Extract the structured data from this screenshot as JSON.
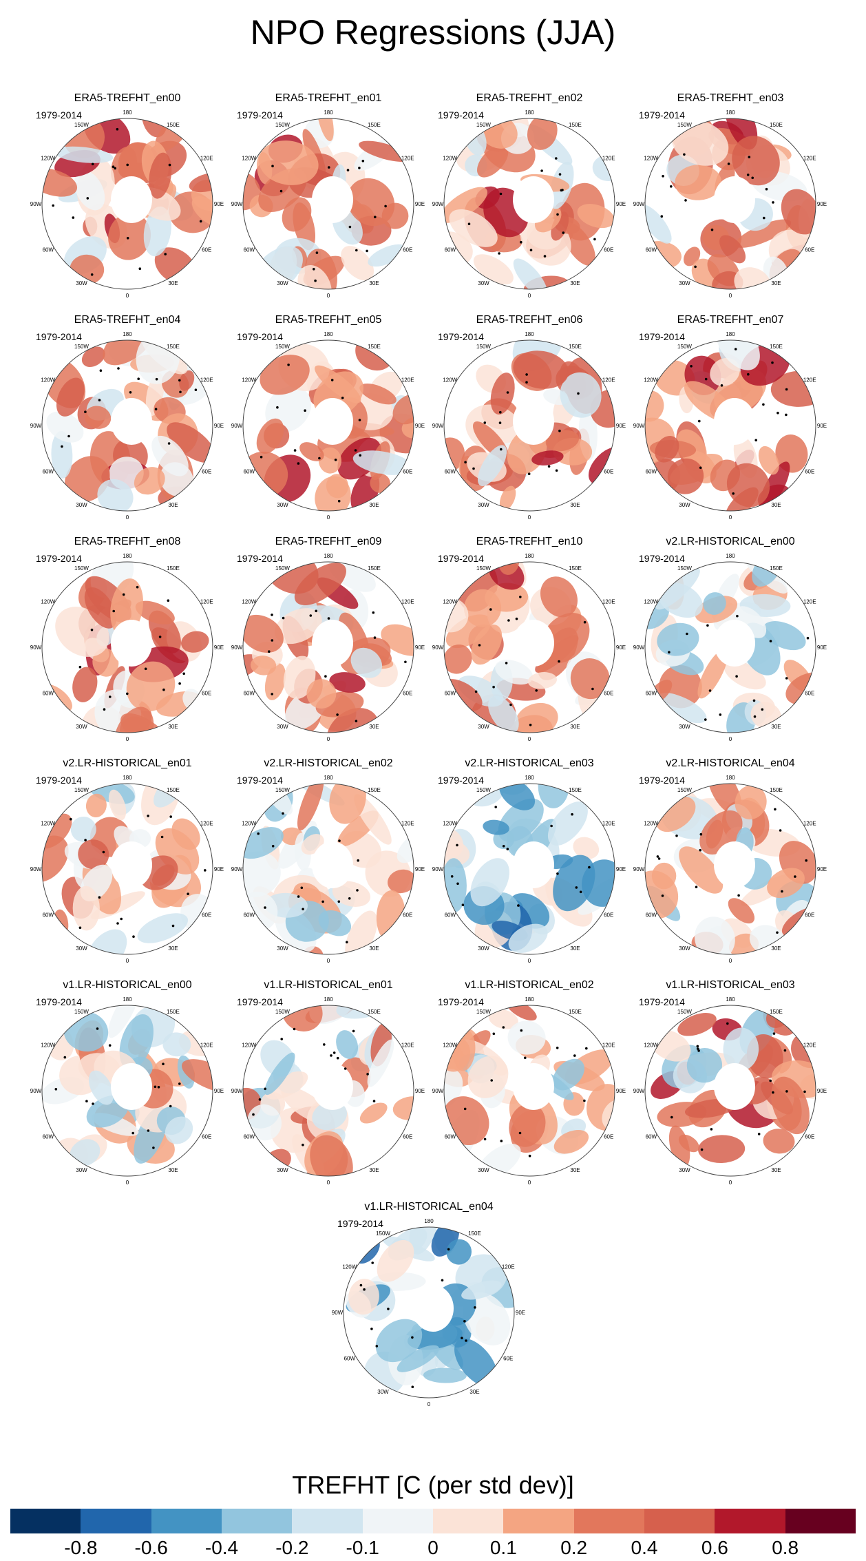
{
  "title": "NPO Regressions (JJA)",
  "chart_data": {
    "type": "heatmap",
    "projection": "north-polar-stereographic",
    "variable": "TREFHT",
    "colorbar_title": "TREFHT [C (per std dev)]",
    "colorbar_ticks": [
      "-0.8",
      "-0.6",
      "-0.4",
      "-0.2",
      "-0.1",
      "0",
      "0.1",
      "0.2",
      "0.4",
      "0.6",
      "0.8"
    ],
    "colorbar_colors": [
      "#053061",
      "#2166ac",
      "#4393c3",
      "#92c5de",
      "#d1e5f0",
      "#f0f4f7",
      "#fbe3d7",
      "#f4a582",
      "#e2775c",
      "#d6604d",
      "#b2182b",
      "#67001f"
    ],
    "lon_labels": [
      "180",
      "150W",
      "150E",
      "120W",
      "120E",
      "90W",
      "90E",
      "60W",
      "60E",
      "30W",
      "30E",
      "0"
    ],
    "panels": [
      {
        "title": "ERA5-TREFHT_en00",
        "period": "1979-2014",
        "pattern": "warm",
        "seed": 1
      },
      {
        "title": "ERA5-TREFHT_en01",
        "period": "1979-2014",
        "pattern": "warm",
        "seed": 2
      },
      {
        "title": "ERA5-TREFHT_en02",
        "period": "1979-2014",
        "pattern": "warm",
        "seed": 3
      },
      {
        "title": "ERA5-TREFHT_en03",
        "period": "1979-2014",
        "pattern": "warm",
        "seed": 4
      },
      {
        "title": "ERA5-TREFHT_en04",
        "period": "1979-2014",
        "pattern": "warm",
        "seed": 5
      },
      {
        "title": "ERA5-TREFHT_en05",
        "period": "1979-2014",
        "pattern": "warm",
        "seed": 6
      },
      {
        "title": "ERA5-TREFHT_en06",
        "period": "1979-2014",
        "pattern": "warm",
        "seed": 7
      },
      {
        "title": "ERA5-TREFHT_en07",
        "period": "1979-2014",
        "pattern": "warm",
        "seed": 8
      },
      {
        "title": "ERA5-TREFHT_en08",
        "period": "1979-2014",
        "pattern": "warm",
        "seed": 9
      },
      {
        "title": "ERA5-TREFHT_en09",
        "period": "1979-2014",
        "pattern": "warm",
        "seed": 10
      },
      {
        "title": "ERA5-TREFHT_en10",
        "period": "1979-2014",
        "pattern": "warm",
        "seed": 11
      },
      {
        "title": "v2.LR-HISTORICAL_en00",
        "period": "1979-2014",
        "pattern": "mixed",
        "seed": 12
      },
      {
        "title": "v2.LR-HISTORICAL_en01",
        "period": "1979-2014",
        "pattern": "mixed-warm",
        "seed": 13
      },
      {
        "title": "v2.LR-HISTORICAL_en02",
        "period": "1979-2014",
        "pattern": "mixed",
        "seed": 14
      },
      {
        "title": "v2.LR-HISTORICAL_en03",
        "period": "1979-2014",
        "pattern": "cool",
        "seed": 15
      },
      {
        "title": "v2.LR-HISTORICAL_en04",
        "period": "1979-2014",
        "pattern": "mixed-warm",
        "seed": 16
      },
      {
        "title": "v1.LR-HISTORICAL_en00",
        "period": "1979-2014",
        "pattern": "mixed",
        "seed": 17
      },
      {
        "title": "v1.LR-HISTORICAL_en01",
        "period": "1979-2014",
        "pattern": "mixed-warm",
        "seed": 18
      },
      {
        "title": "v1.LR-HISTORICAL_en02",
        "period": "1979-2014",
        "pattern": "mixed-warm",
        "seed": 19
      },
      {
        "title": "v1.LR-HISTORICAL_en03",
        "period": "1979-2014",
        "pattern": "strong-warm",
        "seed": 20
      },
      {
        "title": "v1.LR-HISTORICAL_en04",
        "period": "1979-2014",
        "pattern": "cool",
        "seed": 21
      }
    ]
  }
}
